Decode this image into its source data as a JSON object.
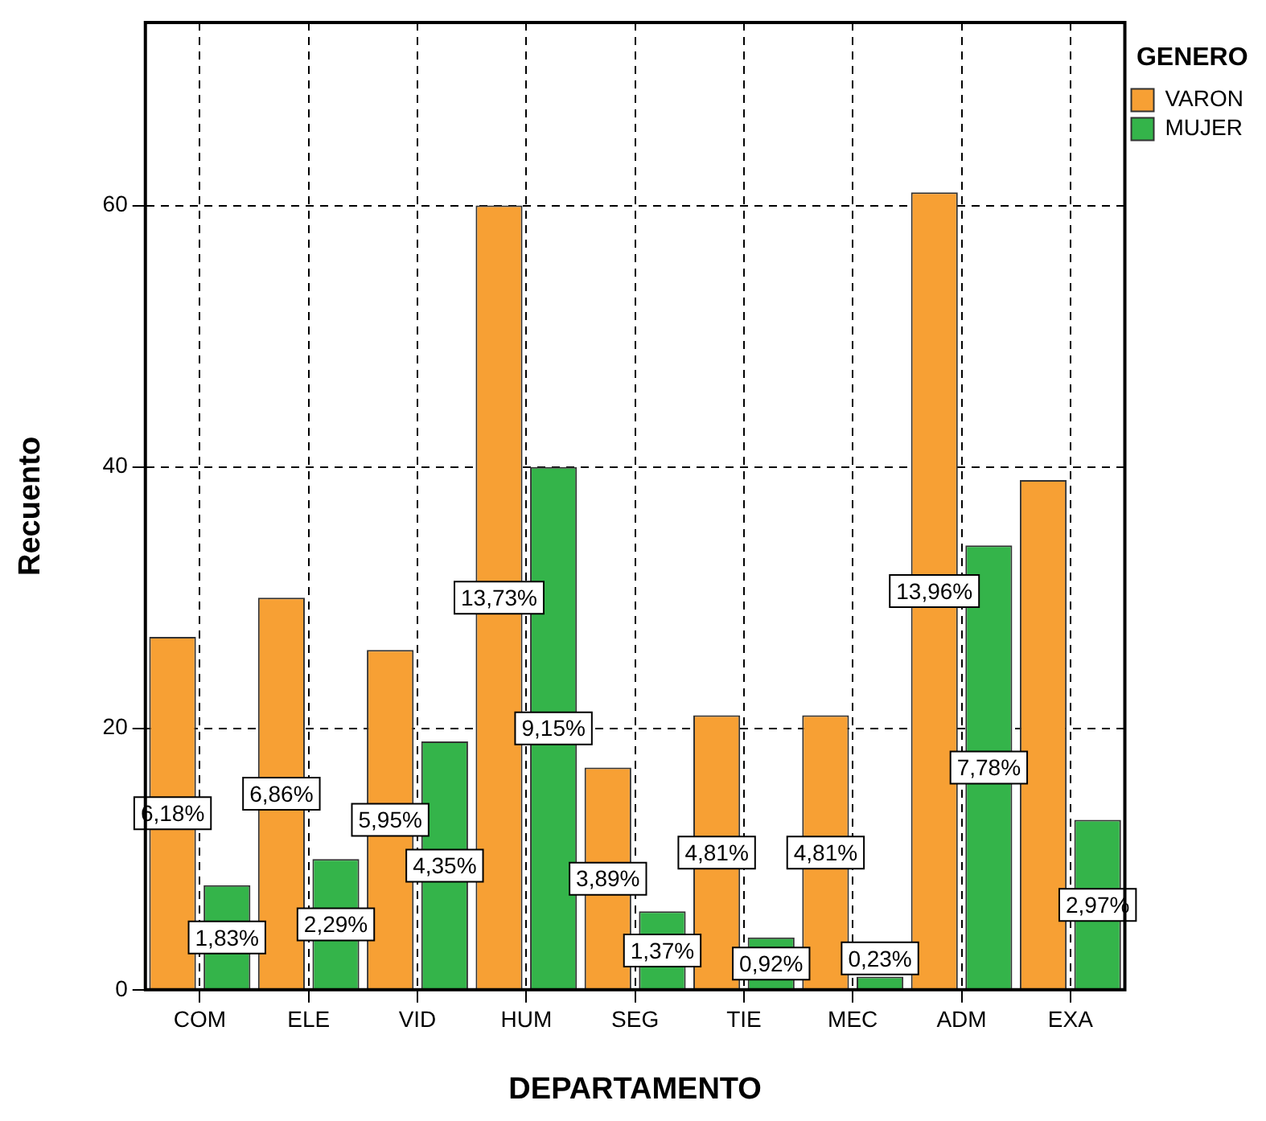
{
  "chart_data": {
    "type": "bar",
    "xlabel": "DEPARTAMENTO",
    "ylabel": "Recuento",
    "legend_title": "GENERO",
    "categories": [
      "COM",
      "ELE",
      "VID",
      "HUM",
      "SEG",
      "TIE",
      "MEC",
      "ADM",
      "EXA"
    ],
    "series": [
      {
        "name": "VARON",
        "color": "#f7a034",
        "values": [
          27,
          30,
          26,
          60,
          17,
          21,
          21,
          61,
          39
        ]
      },
      {
        "name": "MUJER",
        "color": "#34b44a",
        "values": [
          8,
          10,
          19,
          40,
          6,
          4,
          1,
          34,
          13
        ]
      }
    ],
    "annotations": [
      {
        "text": "6,18%",
        "x": "COM",
        "y": 13.5
      },
      {
        "text": "1,83%",
        "x": "COM",
        "y": 4
      },
      {
        "text": "6,86%",
        "x": "ELE",
        "y": 15
      },
      {
        "text": "2,29%",
        "x": "ELE",
        "y": 5
      },
      {
        "text": "5,95%",
        "x": "VID",
        "y": 13
      },
      {
        "text": "4,35%",
        "x": "VID",
        "y": 9.5
      },
      {
        "text": "13,73%",
        "x": "HUM",
        "y": 30
      },
      {
        "text": "9,15%",
        "x": "HUM",
        "y": 20
      },
      {
        "text": "3,89%",
        "x": "SEG",
        "y": 8.5
      },
      {
        "text": "1,37%",
        "x": "SEG",
        "y": 3
      },
      {
        "text": "4,81%",
        "x": "TIE",
        "y": 10.5
      },
      {
        "text": "0,92%",
        "x": "TIE",
        "y": 2
      },
      {
        "text": "4,81%",
        "x": "MEC",
        "y": 10.5
      },
      {
        "text": "0,23%",
        "x": "MEC",
        "y": 2.4
      },
      {
        "text": "13,96%",
        "x": "ADM",
        "y": 30.5
      },
      {
        "text": "7,78%",
        "x": "ADM",
        "y": 17
      },
      {
        "text": "2,97%",
        "x": "EXA",
        "y": 6.5
      }
    ],
    "ylim": [
      0,
      74
    ],
    "yticks": [
      0,
      20,
      40,
      60
    ],
    "grid": true,
    "legend": "top right"
  }
}
